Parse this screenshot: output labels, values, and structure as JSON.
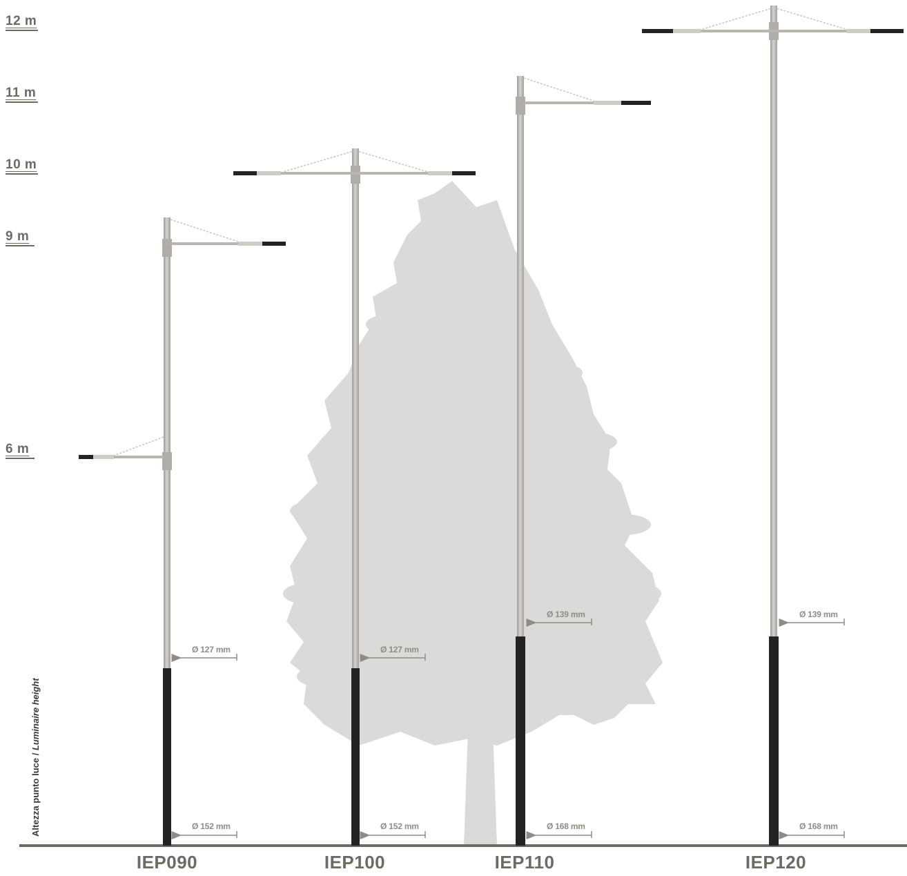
{
  "height_labels": [
    "12 m",
    "11 m",
    "10 m",
    "9 m",
    "6 m"
  ],
  "axis_label": {
    "it": "Altezza punto luce",
    "separator": " / ",
    "en": "Luminaire height"
  },
  "poles": [
    {
      "model": "IEP090",
      "top_diameter": "Ø 127 mm",
      "base_diameter": "Ø 152 mm"
    },
    {
      "model": "IEP100",
      "top_diameter": "Ø 127 mm",
      "base_diameter": "Ø 152 mm"
    },
    {
      "model": "IEP110",
      "top_diameter": "Ø 139 mm",
      "base_diameter": "Ø 168 mm"
    },
    {
      "model": "IEP120",
      "top_diameter": "Ø 139 mm",
      "base_diameter": "Ø 168 mm"
    }
  ],
  "colors": {
    "pole_upper": "#b9b6b1",
    "pole_lower": "#232323",
    "tree": "#dcdad9",
    "ground": "#6d6a64",
    "label": "#6d6a64"
  }
}
